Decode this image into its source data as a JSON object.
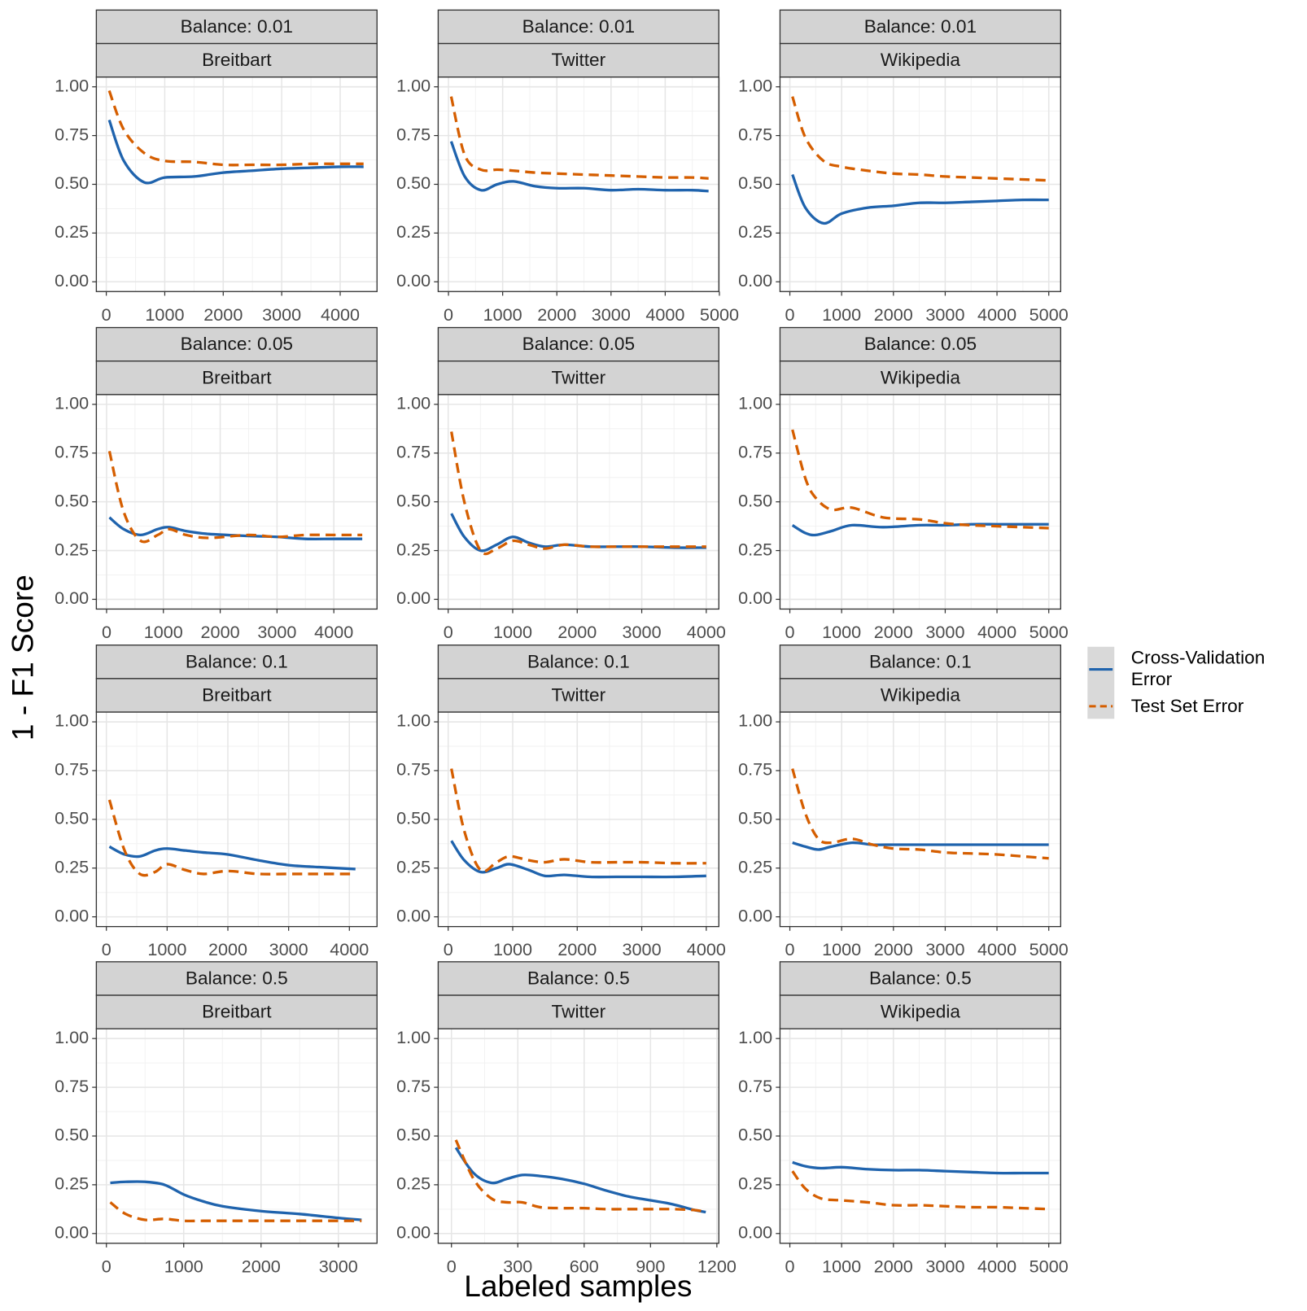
{
  "figure": {
    "xlabel": "Labeled samples",
    "ylabel": "1 - F1 Score"
  },
  "chart_data": [
    {
      "type": "line",
      "strip": "Balance: 0.01",
      "title": "Breitbart",
      "x": [
        50,
        300,
        650,
        1000,
        1500,
        2000,
        2500,
        3000,
        3500,
        4000,
        4400
      ],
      "series": [
        {
          "name": "Cross-Validation Error",
          "color": "#1f63ad",
          "linestyle": "solid",
          "values": [
            0.83,
            0.62,
            0.51,
            0.535,
            0.54,
            0.56,
            0.57,
            0.58,
            0.585,
            0.59,
            0.59
          ]
        },
        {
          "name": "Test Set Error",
          "color": "#d55e00",
          "linestyle": "dashed",
          "values": [
            0.98,
            0.78,
            0.66,
            0.62,
            0.615,
            0.6,
            0.6,
            0.6,
            0.605,
            0.605,
            0.605
          ]
        }
      ],
      "xlim": [
        -170,
        4630
      ],
      "xticks": [
        0,
        1000,
        2000,
        3000,
        4000
      ],
      "ylim": [
        -0.05,
        1.05
      ],
      "yticks": [
        {
          "value": 0,
          "label": "0.00"
        },
        0.25,
        {
          "value": 0.5,
          "label": "0.50"
        },
        0.75,
        {
          "value": 1,
          "label": "1.00"
        }
      ],
      "grid": true
    },
    {
      "type": "line",
      "strip": "Balance: 0.01",
      "title": "Twitter",
      "x": [
        50,
        300,
        600,
        900,
        1200,
        1600,
        2000,
        2500,
        3000,
        3500,
        4000,
        4500,
        4800
      ],
      "series": [
        {
          "name": "Cross-Validation Error",
          "color": "#1f63ad",
          "linestyle": "solid",
          "values": [
            0.72,
            0.54,
            0.47,
            0.5,
            0.515,
            0.49,
            0.48,
            0.48,
            0.47,
            0.475,
            0.47,
            0.47,
            0.465
          ]
        },
        {
          "name": "Test Set Error",
          "color": "#d55e00",
          "linestyle": "dashed",
          "values": [
            0.95,
            0.65,
            0.575,
            0.575,
            0.57,
            0.56,
            0.555,
            0.55,
            0.545,
            0.54,
            0.535,
            0.535,
            0.53
          ]
        }
      ],
      "xlim": [
        -190,
        4990
      ],
      "xticks": [
        0,
        1000,
        2000,
        3000,
        4000,
        5000
      ],
      "ylim": [
        -0.05,
        1.05
      ],
      "yticks": [
        {
          "value": 0,
          "label": "0.00"
        },
        0.25,
        {
          "value": 0.5,
          "label": "0.50"
        },
        0.75,
        {
          "value": 1,
          "label": "1.00"
        }
      ],
      "grid": true
    },
    {
      "type": "line",
      "strip": "Balance: 0.01",
      "title": "Wikipedia",
      "x": [
        50,
        300,
        650,
        1000,
        1500,
        2000,
        2500,
        3000,
        3500,
        4000,
        4500,
        5000
      ],
      "series": [
        {
          "name": "Cross-Validation Error",
          "color": "#1f63ad",
          "linestyle": "solid",
          "values": [
            0.55,
            0.38,
            0.3,
            0.35,
            0.38,
            0.39,
            0.405,
            0.405,
            0.41,
            0.415,
            0.42,
            0.42
          ]
        },
        {
          "name": "Test Set Error",
          "color": "#d55e00",
          "linestyle": "dashed",
          "values": [
            0.95,
            0.74,
            0.62,
            0.59,
            0.57,
            0.555,
            0.55,
            0.54,
            0.535,
            0.53,
            0.525,
            0.52
          ]
        }
      ],
      "xlim": [
        -190,
        5230
      ],
      "xticks": [
        0,
        1000,
        2000,
        3000,
        4000,
        5000
      ],
      "ylim": [
        -0.05,
        1.05
      ],
      "yticks": [
        {
          "value": 0,
          "label": "0.00"
        },
        0.25,
        {
          "value": 0.5,
          "label": "0.50"
        },
        0.75,
        {
          "value": 1,
          "label": "1.00"
        }
      ],
      "grid": true
    },
    {
      "type": "line",
      "strip": "Balance: 0.05",
      "title": "Breitbart",
      "x": [
        50,
        300,
        600,
        900,
        1100,
        1400,
        1800,
        2500,
        3000,
        3500,
        4000,
        4500
      ],
      "series": [
        {
          "name": "Cross-Validation Error",
          "color": "#1f63ad",
          "linestyle": "solid",
          "values": [
            0.42,
            0.36,
            0.33,
            0.36,
            0.37,
            0.35,
            0.335,
            0.325,
            0.32,
            0.31,
            0.31,
            0.31
          ]
        },
        {
          "name": "Test Set Error",
          "color": "#d55e00",
          "linestyle": "dashed",
          "values": [
            0.76,
            0.45,
            0.3,
            0.33,
            0.36,
            0.33,
            0.315,
            0.33,
            0.32,
            0.33,
            0.33,
            0.33
          ]
        }
      ],
      "xlim": [
        -180,
        4760
      ],
      "xticks": [
        0,
        1000,
        2000,
        3000,
        4000
      ],
      "ylim": [
        -0.05,
        1.05
      ],
      "yticks": [
        {
          "value": 0,
          "label": "0.00"
        },
        0.25,
        {
          "value": 0.5,
          "label": "0.50"
        },
        0.75,
        {
          "value": 1,
          "label": "1.00"
        }
      ],
      "grid": true
    },
    {
      "type": "line",
      "strip": "Balance: 0.05",
      "title": "Twitter",
      "x": [
        50,
        250,
        500,
        750,
        1000,
        1250,
        1500,
        1800,
        2200,
        2600,
        3000,
        3500,
        4000
      ],
      "series": [
        {
          "name": "Cross-Validation Error",
          "color": "#1f63ad",
          "linestyle": "solid",
          "values": [
            0.44,
            0.32,
            0.25,
            0.28,
            0.32,
            0.29,
            0.27,
            0.28,
            0.27,
            0.27,
            0.27,
            0.265,
            0.265
          ]
        },
        {
          "name": "Test Set Error",
          "color": "#d55e00",
          "linestyle": "dashed",
          "values": [
            0.86,
            0.5,
            0.25,
            0.26,
            0.3,
            0.28,
            0.26,
            0.28,
            0.27,
            0.27,
            0.27,
            0.27,
            0.27
          ]
        }
      ],
      "xlim": [
        -155,
        4195
      ],
      "xticks": [
        0,
        1000,
        2000,
        3000,
        4000
      ],
      "ylim": [
        -0.05,
        1.05
      ],
      "yticks": [
        {
          "value": 0,
          "label": "0.00"
        },
        0.25,
        {
          "value": 0.5,
          "label": "0.50"
        },
        0.75,
        {
          "value": 1,
          "label": "1.00"
        }
      ],
      "grid": true
    },
    {
      "type": "line",
      "strip": "Balance: 0.05",
      "title": "Wikipedia",
      "x": [
        50,
        300,
        500,
        800,
        1200,
        1800,
        2500,
        3000,
        3500,
        4000,
        4500,
        5000
      ],
      "series": [
        {
          "name": "Cross-Validation Error",
          "color": "#1f63ad",
          "linestyle": "solid",
          "values": [
            0.38,
            0.34,
            0.33,
            0.35,
            0.38,
            0.37,
            0.38,
            0.38,
            0.385,
            0.385,
            0.385,
            0.385
          ]
        },
        {
          "name": "Test Set Error",
          "color": "#d55e00",
          "linestyle": "dashed",
          "values": [
            0.87,
            0.62,
            0.52,
            0.46,
            0.47,
            0.42,
            0.41,
            0.39,
            0.38,
            0.375,
            0.37,
            0.365
          ]
        }
      ],
      "xlim": [
        -190,
        5230
      ],
      "xticks": [
        0,
        1000,
        2000,
        3000,
        4000,
        5000
      ],
      "ylim": [
        -0.05,
        1.05
      ],
      "yticks": [
        {
          "value": 0,
          "label": "0.00"
        },
        0.25,
        {
          "value": 0.5,
          "label": "0.50"
        },
        0.75,
        {
          "value": 1,
          "label": "1.00"
        }
      ],
      "grid": true
    },
    {
      "type": "line",
      "strip": "Balance: 0.1",
      "title": "Breitbart",
      "x": [
        50,
        300,
        550,
        800,
        1000,
        1300,
        1600,
        2000,
        2500,
        3000,
        3500,
        4100
      ],
      "series": [
        {
          "name": "Cross-Validation Error",
          "color": "#1f63ad",
          "linestyle": "solid",
          "values": [
            0.36,
            0.32,
            0.31,
            0.34,
            0.35,
            0.34,
            0.33,
            0.32,
            0.29,
            0.265,
            0.255,
            0.245
          ]
        },
        {
          "name": "Test Set Error",
          "color": "#d55e00",
          "linestyle": "dashed",
          "values": [
            0.6,
            0.34,
            0.22,
            0.23,
            0.27,
            0.24,
            0.22,
            0.235,
            0.22,
            0.22,
            0.22,
            0.22
          ]
        }
      ],
      "xlim": [
        -165,
        4455
      ],
      "xticks": [
        0,
        1000,
        2000,
        3000,
        4000
      ],
      "ylim": [
        -0.05,
        1.05
      ],
      "yticks": [
        {
          "value": 0,
          "label": "0.00"
        },
        0.25,
        {
          "value": 0.5,
          "label": "0.50"
        },
        0.75,
        {
          "value": 1,
          "label": "1.00"
        }
      ],
      "grid": true
    },
    {
      "type": "line",
      "strip": "Balance: 0.1",
      "title": "Twitter",
      "x": [
        50,
        250,
        500,
        750,
        950,
        1250,
        1500,
        1800,
        2200,
        2600,
        3000,
        3500,
        4000
      ],
      "series": [
        {
          "name": "Cross-Validation Error",
          "color": "#1f63ad",
          "linestyle": "solid",
          "values": [
            0.39,
            0.29,
            0.23,
            0.25,
            0.27,
            0.24,
            0.21,
            0.215,
            0.205,
            0.205,
            0.205,
            0.205,
            0.21
          ]
        },
        {
          "name": "Test Set Error",
          "color": "#d55e00",
          "linestyle": "dashed",
          "values": [
            0.76,
            0.44,
            0.24,
            0.28,
            0.31,
            0.29,
            0.28,
            0.295,
            0.28,
            0.28,
            0.28,
            0.275,
            0.275
          ]
        }
      ],
      "xlim": [
        -155,
        4195
      ],
      "xticks": [
        0,
        1000,
        2000,
        3000,
        4000
      ],
      "ylim": [
        -0.05,
        1.05
      ],
      "yticks": [
        {
          "value": 0,
          "label": "0.00"
        },
        0.25,
        {
          "value": 0.5,
          "label": "0.50"
        },
        0.75,
        {
          "value": 1,
          "label": "1.00"
        }
      ],
      "grid": true
    },
    {
      "type": "line",
      "strip": "Balance: 0.1",
      "title": "Wikipedia",
      "x": [
        50,
        300,
        550,
        800,
        1200,
        1600,
        2000,
        2500,
        3000,
        3500,
        4000,
        4500,
        5000
      ],
      "series": [
        {
          "name": "Cross-Validation Error",
          "color": "#1f63ad",
          "linestyle": "solid",
          "values": [
            0.38,
            0.36,
            0.345,
            0.36,
            0.38,
            0.37,
            0.37,
            0.37,
            0.37,
            0.37,
            0.37,
            0.37,
            0.37
          ]
        },
        {
          "name": "Test Set Error",
          "color": "#d55e00",
          "linestyle": "dashed",
          "values": [
            0.76,
            0.53,
            0.4,
            0.38,
            0.4,
            0.37,
            0.35,
            0.345,
            0.33,
            0.325,
            0.32,
            0.31,
            0.3
          ]
        }
      ],
      "xlim": [
        -190,
        5230
      ],
      "xticks": [
        0,
        1000,
        2000,
        3000,
        4000,
        5000
      ],
      "ylim": [
        -0.05,
        1.05
      ],
      "yticks": [
        {
          "value": 0,
          "label": "0.00"
        },
        0.25,
        {
          "value": 0.5,
          "label": "0.50"
        },
        0.75,
        {
          "value": 1,
          "label": "1.00"
        }
      ],
      "grid": true
    },
    {
      "type": "line",
      "strip": "Balance: 0.5",
      "title": "Breitbart",
      "x": [
        50,
        250,
        500,
        750,
        1000,
        1250,
        1500,
        2000,
        2500,
        3000,
        3300
      ],
      "series": [
        {
          "name": "Cross-Validation Error",
          "color": "#1f63ad",
          "linestyle": "solid",
          "values": [
            0.26,
            0.265,
            0.265,
            0.25,
            0.2,
            0.165,
            0.14,
            0.115,
            0.1,
            0.08,
            0.07
          ]
        },
        {
          "name": "Test Set Error",
          "color": "#d55e00",
          "linestyle": "dashed",
          "values": [
            0.16,
            0.1,
            0.07,
            0.075,
            0.065,
            0.065,
            0.065,
            0.065,
            0.065,
            0.065,
            0.065
          ]
        }
      ],
      "xlim": [
        -130,
        3500
      ],
      "xticks": [
        0,
        1000,
        2000,
        3000
      ],
      "ylim": [
        -0.05,
        1.05
      ],
      "yticks": [
        {
          "value": 0,
          "label": "0.00"
        },
        0.25,
        {
          "value": 0.5,
          "label": "0.50"
        },
        0.75,
        {
          "value": 1,
          "label": "1.00"
        }
      ],
      "grid": true
    },
    {
      "type": "line",
      "strip": "Balance: 0.5",
      "title": "Twitter",
      "x": [
        20,
        100,
        180,
        250,
        320,
        400,
        500,
        600,
        700,
        800,
        900,
        1000,
        1100,
        1150
      ],
      "series": [
        {
          "name": "Cross-Validation Error",
          "color": "#1f63ad",
          "linestyle": "solid",
          "values": [
            0.44,
            0.31,
            0.26,
            0.28,
            0.3,
            0.295,
            0.28,
            0.255,
            0.22,
            0.19,
            0.17,
            0.15,
            0.12,
            0.11
          ]
        },
        {
          "name": "Test Set Error",
          "color": "#d55e00",
          "linestyle": "dashed",
          "values": [
            0.48,
            0.28,
            0.18,
            0.16,
            0.16,
            0.135,
            0.13,
            0.13,
            0.125,
            0.125,
            0.125,
            0.125,
            0.12,
            0.11
          ]
        }
      ],
      "xlim": [
        -60,
        1209
      ],
      "xticks": [
        0,
        300,
        600,
        900,
        1200
      ],
      "ylim": [
        -0.05,
        1.05
      ],
      "yticks": [
        {
          "value": 0,
          "label": "0.00"
        },
        0.25,
        {
          "value": 0.5,
          "label": "0.50"
        },
        0.75,
        {
          "value": 1,
          "label": "1.00"
        }
      ],
      "grid": true
    },
    {
      "type": "line",
      "strip": "Balance: 0.5",
      "title": "Wikipedia",
      "x": [
        50,
        300,
        600,
        1000,
        1500,
        2000,
        2500,
        3000,
        3500,
        4000,
        4500,
        5000
      ],
      "series": [
        {
          "name": "Cross-Validation Error",
          "color": "#1f63ad",
          "linestyle": "solid",
          "values": [
            0.365,
            0.345,
            0.335,
            0.34,
            0.33,
            0.325,
            0.325,
            0.32,
            0.315,
            0.31,
            0.31,
            0.31
          ]
        },
        {
          "name": "Test Set Error",
          "color": "#d55e00",
          "linestyle": "dashed",
          "values": [
            0.32,
            0.23,
            0.18,
            0.17,
            0.16,
            0.145,
            0.145,
            0.14,
            0.135,
            0.135,
            0.13,
            0.125
          ]
        }
      ],
      "xlim": [
        -190,
        5230
      ],
      "xticks": [
        0,
        1000,
        2000,
        3000,
        4000,
        5000
      ],
      "ylim": [
        -0.05,
        1.05
      ],
      "yticks": [
        {
          "value": 0,
          "label": "0.00"
        },
        0.25,
        {
          "value": 0.5,
          "label": "0.50"
        },
        0.75,
        {
          "value": 1,
          "label": "1.00"
        }
      ],
      "grid": true
    }
  ]
}
